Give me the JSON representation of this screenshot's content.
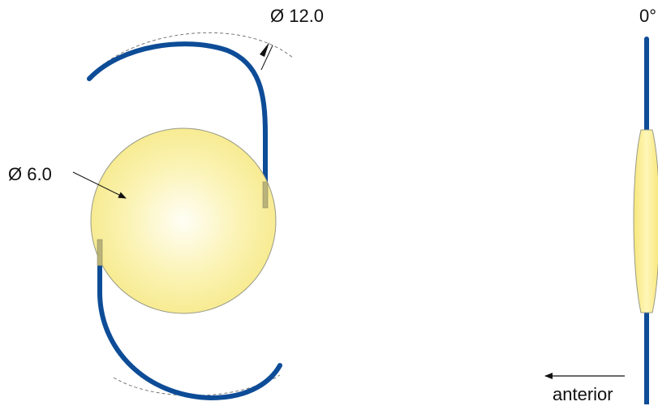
{
  "labels": {
    "haptic_diameter": "Ø 12.0",
    "optic_diameter": "Ø 6.0",
    "angle": "0°",
    "direction": "anterior"
  },
  "colors": {
    "haptic": "#0d4c97",
    "optic_center": "#fffef5",
    "optic_edge": "#f8ec8e",
    "optic_stroke": "#9a9a88",
    "dashed": "#777777",
    "ink": "#111111"
  }
}
